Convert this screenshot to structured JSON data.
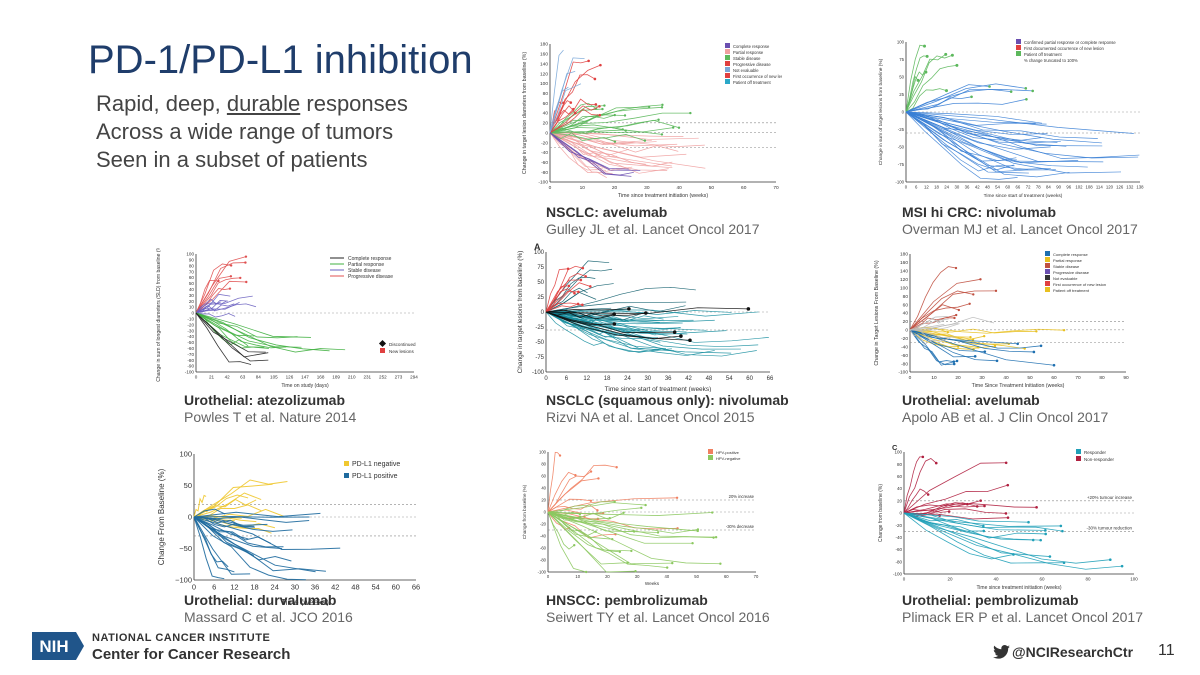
{
  "title": "PD-1/PD-L1 inhibition",
  "bullets": {
    "b1_pre": "Rapid, deep, ",
    "b1_u": "durable",
    "b1_post": " responses",
    "b2": "Across a wide range of tumors",
    "b3": "Seen in a subset of patients"
  },
  "panels": [
    {
      "title": "NSCLC: avelumab",
      "ref": "Gulley JL et al. Lancet Oncol 2017"
    },
    {
      "title": "MSI hi CRC: nivolumab",
      "ref": "Overman MJ et al. Lancet Oncol 2017"
    },
    {
      "title": "Urothelial: atezolizumab",
      "ref": "Powles T et al. Nature 2014"
    },
    {
      "title": "NSCLC (squamous only): nivolumab",
      "ref": "Rizvi NA et al. Lancet Oncol 2015"
    },
    {
      "title": "Urothelial: avelumab",
      "ref": "Apolo AB et al. J Clin Oncol 2017"
    },
    {
      "title": "Urothelial: durvalumab",
      "ref": "Massard C et al. JCO 2016"
    },
    {
      "title": "HNSCC: pembrolizumab",
      "ref": "Seiwert TY et al. Lancet Oncol 2016"
    },
    {
      "title": "Urothelial: pembrolizumab",
      "ref": "Plimack ER P et al. Lancet Oncol 2017"
    }
  ],
  "p1": {
    "ylabel": "Change in target lesion diameters from baseline (%)",
    "xlabel": "Time since treatment initiation (weeks)",
    "yticks": [
      "180",
      "160",
      "140",
      "120",
      "100",
      "80",
      "60",
      "40",
      "20",
      "0",
      "-20",
      "-40",
      "-60",
      "-80",
      "-100"
    ],
    "xticks": [
      "0",
      "10",
      "20",
      "30",
      "40",
      "50",
      "60",
      "70"
    ],
    "legend": [
      "Complete response",
      "Partial response",
      "Stable disease",
      "Progressive disease",
      "Not evaluable",
      "First occurrence of new lesion",
      "Patient off treatment"
    ]
  },
  "p2": {
    "ylabel": "Change in sum of target lesions from baseline (%)",
    "xlabel": "Time since start of treatment (weeks)",
    "yticks": [
      "100",
      "75",
      "50",
      "25",
      "0",
      "-25",
      "-50",
      "-75",
      "-100"
    ],
    "xticks": [
      "0",
      "6",
      "12",
      "18",
      "24",
      "30",
      "36",
      "42",
      "48",
      "54",
      "60",
      "66",
      "72",
      "78",
      "84",
      "90",
      "96",
      "102",
      "108",
      "114",
      "120",
      "126",
      "132",
      "138"
    ],
    "legend": [
      "Confirmed partial response or complete response",
      "First documented occurrence of new lesion",
      "Patient off treatment",
      "% change truncated to 100%"
    ]
  },
  "p3": {
    "ylabel": "Change in sum of longest diameters (SLD) from baseline (%)",
    "xlabel": "Time on study (days)",
    "yticks": [
      "100",
      "90",
      "80",
      "70",
      "60",
      "50",
      "40",
      "30",
      "20",
      "10",
      "0",
      "-10",
      "-20",
      "-30",
      "-40",
      "-50",
      "-60",
      "-70",
      "-80",
      "-90",
      "-100"
    ],
    "xticks": [
      "0",
      "21",
      "42",
      "63",
      "84",
      "105",
      "126",
      "147",
      "168",
      "189",
      "210",
      "231",
      "252",
      "273",
      "294"
    ],
    "legend": [
      "Complete response",
      "Partial response",
      "Stable disease",
      "Progressive disease"
    ],
    "legend2": [
      "Discontinued",
      "New lesions"
    ]
  },
  "p4": {
    "panel_letter": "A",
    "ylabel": "Change in target lesions from baseline (%)",
    "xlabel": "Time since start of treatment (weeks)",
    "yticks": [
      "100",
      "75",
      "50",
      "25",
      "0",
      "-25",
      "-50",
      "-75",
      "-100"
    ],
    "xticks": [
      "0",
      "6",
      "12",
      "18",
      "24",
      "30",
      "36",
      "42",
      "48",
      "54",
      "60",
      "66"
    ]
  },
  "p5": {
    "ylabel": "Change in Target Lesions From Baseline (%)",
    "xlabel": "Time Since Treatment Initiation (weeks)",
    "yticks": [
      "180",
      "160",
      "140",
      "120",
      "100",
      "80",
      "60",
      "40",
      "20",
      "0",
      "-20",
      "-40",
      "-60",
      "-80",
      "-100"
    ],
    "xticks": [
      "0",
      "10",
      "20",
      "30",
      "40",
      "50",
      "60",
      "70",
      "80",
      "90"
    ],
    "legend": [
      "Complete response",
      "Partial response",
      "Stable disease",
      "Progressive disease",
      "Not evaluable",
      "First occurrence of new lesion",
      "Patient off treatment"
    ]
  },
  "p6": {
    "ylabel": "Change From Baseline (%)",
    "xlabel": "Time (weeks)",
    "yticks": [
      "100",
      "50",
      "0",
      "−50",
      "−100"
    ],
    "xticks": [
      "0",
      "6",
      "12",
      "18",
      "24",
      "30",
      "36",
      "42",
      "48",
      "54",
      "60",
      "66"
    ],
    "legend": [
      "PD-L1 negative",
      "PD-L1 positive"
    ]
  },
  "p7": {
    "ylabel": "Change from baseline (%)",
    "xlabel": "Weeks",
    "yticks": [
      "100",
      "80",
      "60",
      "40",
      "20",
      "0",
      "-20",
      "-40",
      "-60",
      "-80",
      "-100"
    ],
    "xticks": [
      "0",
      "10",
      "20",
      "30",
      "40",
      "50",
      "60",
      "70"
    ],
    "legend": [
      "HPV-positive",
      "HPV-negative"
    ],
    "ref_hi": "20% increase",
    "ref_lo": "-30% decrease"
  },
  "p8": {
    "panel_letter": "C",
    "ylabel": "Change from baseline (%)",
    "xlabel": "Time since treatment initiation (weeks)",
    "yticks": [
      "100",
      "80",
      "60",
      "40",
      "20",
      "0",
      "-20",
      "-40",
      "-60",
      "-80",
      "-100"
    ],
    "xticks": [
      "0",
      "20",
      "40",
      "60",
      "80",
      "100"
    ],
    "legend": [
      "Responder",
      "Non-responder"
    ],
    "ref_hi": "+20% tumour increase",
    "ref_lo": "-30% tumour reduction"
  },
  "footer": {
    "logo": "NIH",
    "institute": "NATIONAL CANCER INSTITUTE",
    "center": "Center for Cancer Research",
    "handle": "@NCIResearchCtr",
    "page": "11"
  },
  "colors": {
    "title": "#1f3d6b",
    "nih_blue": "#20558a"
  }
}
